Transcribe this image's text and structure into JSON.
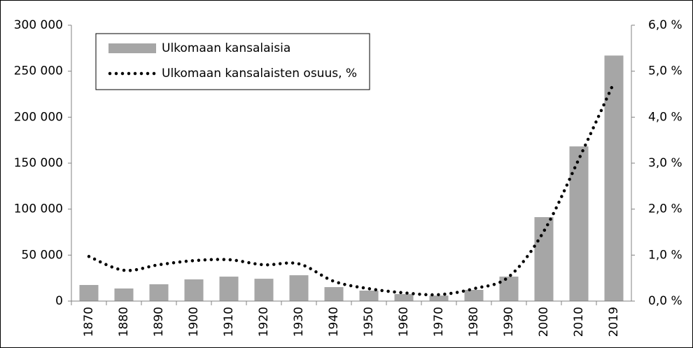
{
  "chart_data": {
    "type": "bar_line",
    "categories": [
      "1870",
      "1880",
      "1890",
      "1900",
      "1910",
      "1920",
      "1930",
      "1940",
      "1950",
      "1960",
      "1970",
      "1980",
      "1990",
      "2000",
      "2010",
      "2019"
    ],
    "series": [
      {
        "name": "Ulkomaan kansalaisia",
        "color": "#a6a6a6",
        "type": "bar",
        "values": [
          17500,
          13700,
          18300,
          23600,
          26600,
          24300,
          28100,
          15200,
          11400,
          7600,
          6000,
          12200,
          26600,
          91300,
          168200,
          267000
        ]
      },
      {
        "name": "Ulkomaan kansalaisten osuus, %",
        "color": "#000000",
        "type": "line",
        "axis": "y2",
        "line_style": "dotted",
        "values": [
          0.97,
          0.67,
          0.79,
          0.88,
          0.9,
          0.79,
          0.81,
          0.43,
          0.27,
          0.18,
          0.14,
          0.27,
          0.53,
          1.52,
          3.09,
          4.75
        ]
      }
    ],
    "ylim": [
      0,
      300000
    ],
    "yticks": [
      0,
      {
        "value": 50000,
        "label": "50 000"
      },
      {
        "value": 100000,
        "label": "100 000"
      },
      {
        "value": 150000,
        "label": "150 000"
      },
      {
        "value": 200000,
        "label": "200 000"
      },
      {
        "value": 250000,
        "label": "250 000"
      },
      {
        "value": 300000,
        "label": "300 000"
      }
    ],
    "y2lim": [
      0,
      6
    ],
    "y2ticks": [
      {
        "value": 0,
        "label": "0,0 %"
      },
      {
        "value": 1,
        "label": "1,0 %"
      },
      {
        "value": 2,
        "label": "2,0 %"
      },
      {
        "value": 3,
        "label": "3,0 %"
      },
      {
        "value": 4,
        "label": "4,0 %"
      },
      {
        "value": 5,
        "label": "5,0 %"
      },
      {
        "value": 6,
        "label": "6,0 %"
      }
    ],
    "grid": false,
    "legend": "upper left"
  }
}
